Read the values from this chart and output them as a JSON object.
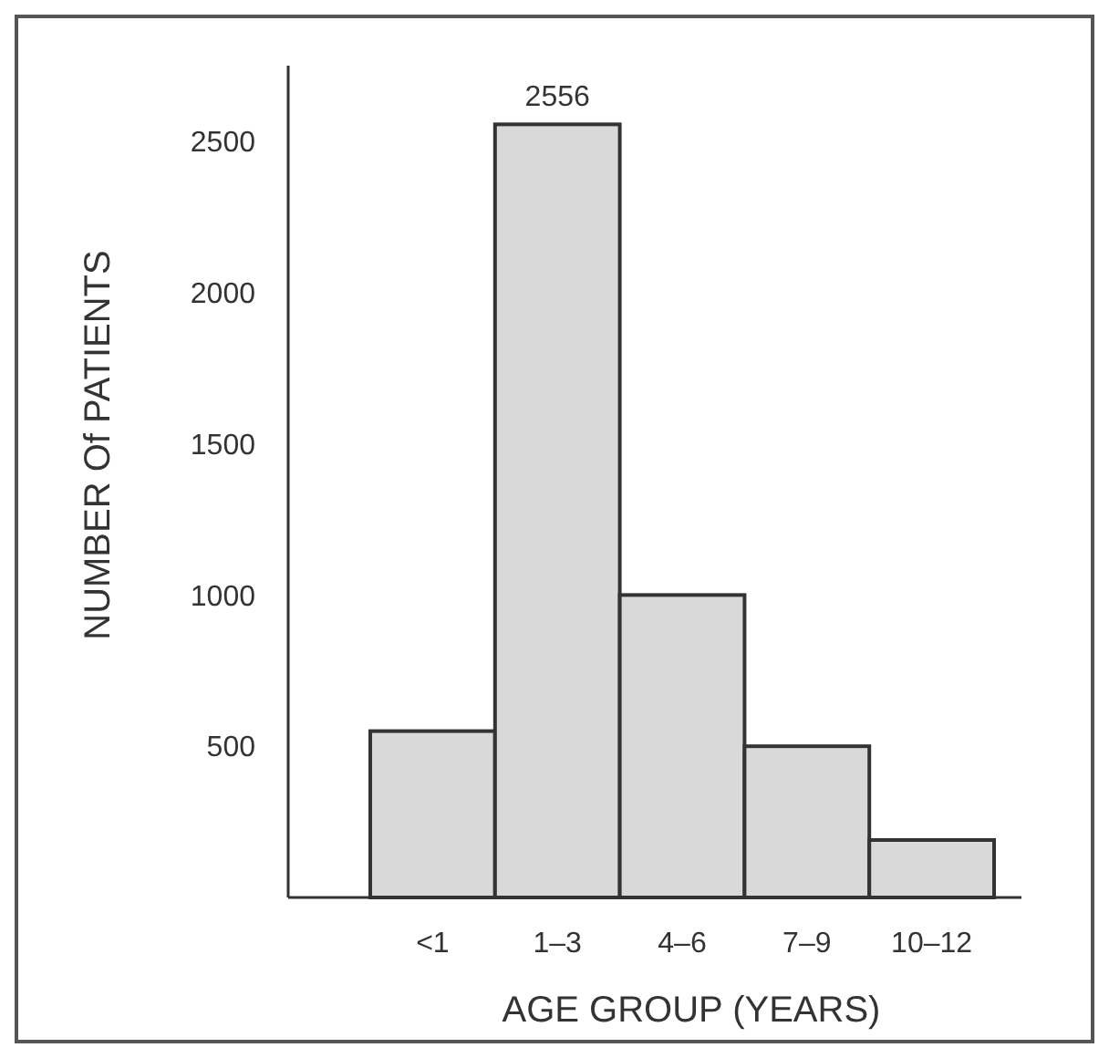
{
  "chart_data": {
    "type": "bar",
    "xlabel": "AGE GROUP (YEARS)",
    "ylabel": "NUMBER Of PATIENTS",
    "categories": [
      "<1",
      "1–3",
      "4–6",
      "7–9",
      "10–12"
    ],
    "values": [
      550,
      2556,
      1000,
      500,
      190
    ],
    "value_labels": [
      null,
      "2556",
      null,
      null,
      null
    ],
    "color": "#d9d9d9",
    "ylim": [
      0,
      2750
    ],
    "yticks": [
      500,
      1000,
      1500,
      2000,
      2500
    ],
    "grid": false
  }
}
